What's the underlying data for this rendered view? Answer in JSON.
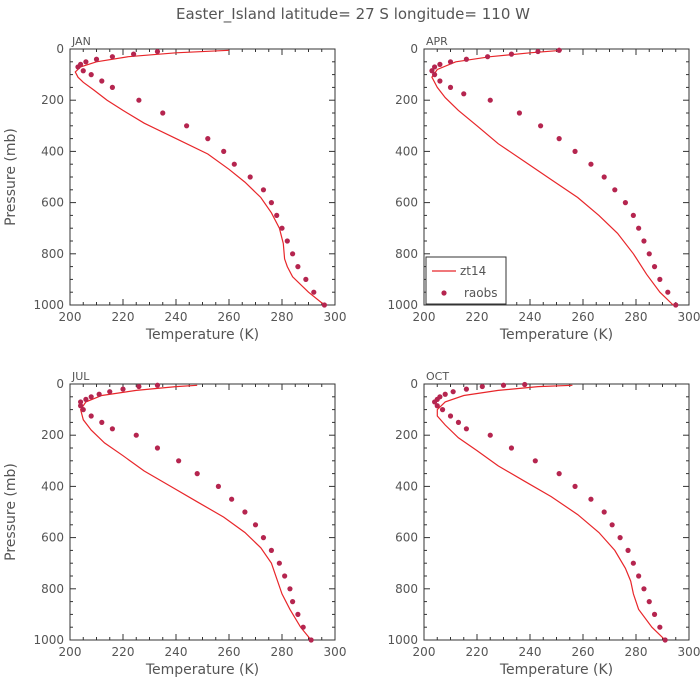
{
  "title": "Easter_Island  latitude= 27 S longitude= 110 W",
  "colors": {
    "model": "#e8262a",
    "obs": "#b5254f",
    "axis": "#333333",
    "text": "#555555"
  },
  "chart_data": [
    {
      "type": "line",
      "panel": "JAN",
      "xlabel": "Temperature (K)",
      "ylabel": "Pressure (mb)",
      "xlim": [
        200,
        300
      ],
      "ylim": [
        1000,
        0
      ],
      "xticks": [
        200,
        220,
        240,
        260,
        280,
        300
      ],
      "yticks": [
        0,
        200,
        400,
        600,
        800,
        1000
      ],
      "grid": false,
      "series": [
        {
          "name": "zt14",
          "kind": "line",
          "x": [
            296,
            290,
            284,
            282,
            281,
            280.5,
            279,
            276,
            272,
            266,
            260,
            252,
            240,
            228,
            220,
            214,
            209,
            205,
            203,
            202,
            204,
            210,
            222,
            240,
            260
          ],
          "y": [
            1000,
            950,
            890,
            850,
            820,
            760,
            700,
            640,
            580,
            520,
            470,
            410,
            350,
            290,
            240,
            200,
            160,
            130,
            110,
            90,
            70,
            50,
            30,
            15,
            5
          ]
        },
        {
          "name": "raobs",
          "kind": "scatter",
          "x": [
            296,
            292,
            289,
            286,
            284,
            282,
            280,
            278,
            276,
            273,
            268,
            262,
            258,
            252,
            244,
            235,
            226,
            216,
            212,
            208,
            205,
            203,
            204,
            206,
            210,
            216,
            224,
            233
          ],
          "y": [
            1000,
            950,
            900,
            850,
            800,
            750,
            700,
            650,
            600,
            550,
            500,
            450,
            400,
            350,
            300,
            250,
            200,
            150,
            125,
            100,
            85,
            70,
            60,
            50,
            40,
            30,
            20,
            10
          ]
        }
      ]
    },
    {
      "type": "line",
      "panel": "APR",
      "xlabel": "Temperature (K)",
      "ylabel": "Pressure (mb)",
      "xlim": [
        200,
        300
      ],
      "ylim": [
        1000,
        0
      ],
      "xticks": [
        200,
        220,
        240,
        260,
        280,
        300
      ],
      "yticks": [
        0,
        200,
        400,
        600,
        800,
        1000
      ],
      "grid": false,
      "legend": "bottom-left",
      "series": [
        {
          "name": "zt14",
          "kind": "line",
          "x": [
            294,
            289,
            284,
            279,
            273,
            266,
            258,
            248,
            238,
            228,
            220,
            213,
            208,
            205,
            203,
            205,
            212,
            225,
            240,
            252
          ],
          "y": [
            1000,
            950,
            880,
            800,
            720,
            650,
            580,
            510,
            440,
            370,
            300,
            240,
            190,
            150,
            110,
            80,
            50,
            30,
            15,
            5
          ]
        },
        {
          "name": "raobs",
          "kind": "scatter",
          "x": [
            295,
            292,
            289,
            287,
            285,
            283,
            281,
            279,
            276,
            272,
            268,
            263,
            257,
            251,
            244,
            236,
            225,
            215,
            210,
            206,
            204,
            203,
            204,
            206,
            210,
            216,
            224,
            233,
            243,
            251
          ],
          "y": [
            1000,
            950,
            900,
            850,
            800,
            750,
            700,
            650,
            600,
            550,
            500,
            450,
            400,
            350,
            300,
            250,
            200,
            175,
            150,
            125,
            100,
            85,
            70,
            60,
            50,
            40,
            30,
            20,
            10,
            5
          ]
        }
      ]
    },
    {
      "type": "line",
      "panel": "JUL",
      "xlabel": "Temperature (K)",
      "ylabel": "Pressure (mb)",
      "xlim": [
        200,
        300
      ],
      "ylim": [
        1000,
        0
      ],
      "xticks": [
        200,
        220,
        240,
        260,
        280,
        300
      ],
      "yticks": [
        0,
        200,
        400,
        600,
        800,
        1000
      ],
      "grid": false,
      "series": [
        {
          "name": "zt14",
          "kind": "line",
          "x": [
            291,
            287,
            283,
            280,
            278,
            276,
            272,
            266,
            258,
            248,
            238,
            228,
            220,
            213,
            208,
            205,
            204,
            206,
            212,
            225,
            240,
            248
          ],
          "y": [
            1000,
            950,
            880,
            820,
            760,
            700,
            640,
            580,
            520,
            460,
            400,
            340,
            280,
            230,
            180,
            140,
            100,
            70,
            45,
            25,
            10,
            5
          ]
        },
        {
          "name": "raobs",
          "kind": "scatter",
          "x": [
            291,
            288,
            286,
            284,
            283,
            281,
            279,
            276,
            273,
            270,
            266,
            261,
            256,
            248,
            241,
            233,
            225,
            216,
            212,
            208,
            205,
            204,
            204,
            206,
            208,
            211,
            215,
            220,
            226,
            233
          ],
          "y": [
            1000,
            950,
            900,
            850,
            800,
            750,
            700,
            650,
            600,
            550,
            500,
            450,
            400,
            350,
            300,
            250,
            200,
            175,
            150,
            125,
            100,
            85,
            70,
            60,
            50,
            40,
            30,
            20,
            10,
            5
          ]
        }
      ]
    },
    {
      "type": "line",
      "panel": "OCT",
      "xlabel": "Temperature (K)",
      "ylabel": "Pressure (mb)",
      "xlim": [
        200,
        300
      ],
      "ylim": [
        1000,
        0
      ],
      "xticks": [
        200,
        220,
        240,
        260,
        280,
        300
      ],
      "yticks": [
        0,
        200,
        400,
        600,
        800,
        1000
      ],
      "grid": false,
      "series": [
        {
          "name": "zt14",
          "kind": "line",
          "x": [
            291,
            286,
            281,
            279,
            278,
            276,
            272,
            266,
            258,
            248,
            238,
            228,
            220,
            213,
            208,
            205,
            205,
            208,
            215,
            228,
            243,
            256
          ],
          "y": [
            1000,
            950,
            880,
            820,
            770,
            720,
            650,
            580,
            510,
            440,
            380,
            320,
            260,
            210,
            160,
            125,
            100,
            70,
            45,
            25,
            10,
            5
          ]
        },
        {
          "name": "raobs",
          "kind": "scatter",
          "x": [
            291,
            289,
            287,
            285,
            283,
            281,
            279,
            277,
            274,
            271,
            268,
            263,
            257,
            251,
            242,
            233,
            225,
            216,
            213,
            210,
            207,
            205,
            204,
            205,
            206,
            208,
            211,
            216,
            222,
            230,
            238
          ],
          "y": [
            1000,
            950,
            900,
            850,
            800,
            750,
            700,
            650,
            600,
            550,
            500,
            450,
            400,
            350,
            300,
            250,
            200,
            175,
            150,
            125,
            100,
            85,
            70,
            60,
            50,
            40,
            30,
            20,
            10,
            5,
            2
          ]
        }
      ]
    }
  ]
}
